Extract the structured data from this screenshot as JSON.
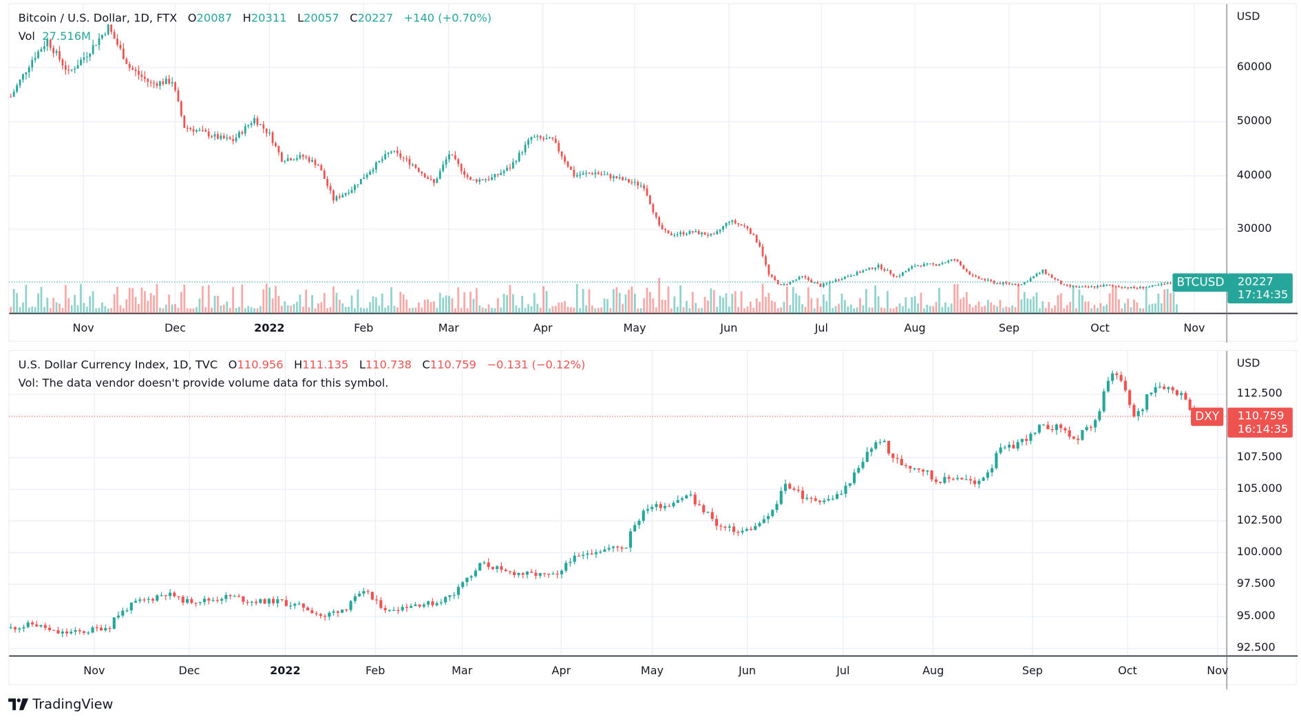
{
  "colors": {
    "up": "#26a69a",
    "down": "#ef5350",
    "grid": "#eaeef5",
    "axis": "#2a2e39"
  },
  "top_chart": {
    "legend": {
      "title": "Bitcoin / U.S. Dollar, 1D, FTX",
      "o_label": "O",
      "o": "20087",
      "h_label": "H",
      "h": "20311",
      "l_label": "L",
      "l": "20057",
      "c_label": "C",
      "c": "20227",
      "change": "+140 (+0.70%)",
      "vol_label": "Vol",
      "vol": "27.516M"
    },
    "currency": "USD",
    "symbol_tag": "BTCUSD",
    "last_price": "20227",
    "countdown": "17:14:35"
  },
  "bottom_chart": {
    "legend": {
      "title": "U.S. Dollar Currency Index, 1D, TVC",
      "o_label": "O",
      "o": "110.956",
      "h_label": "H",
      "h": "111.135",
      "l_label": "L",
      "l": "110.738",
      "c_label": "C",
      "c": "110.759",
      "change": "−0.131 (−0.12%)",
      "vol_note": "Vol: The data vendor doesn't provide volume data for this symbol."
    },
    "currency": "USD",
    "symbol_tag": "DXY",
    "last_price": "110.759",
    "countdown": "16:14:35"
  },
  "footer": {
    "brand": "TradingView"
  },
  "chart_data": [
    {
      "type": "candlestick",
      "title": "Bitcoin / U.S. Dollar, 1D, FTX",
      "ylabel": "USD",
      "ylim": [
        15000,
        71000
      ],
      "yticks": [
        "60000",
        "50000",
        "40000",
        "30000"
      ],
      "xticks": [
        "Nov",
        "Dec",
        "2022",
        "Feb",
        "Mar",
        "Apr",
        "May",
        "Jun",
        "Jul",
        "Aug",
        "Sep",
        "Oct",
        "Nov"
      ],
      "grid": true,
      "volume": true,
      "last": 20227,
      "close_approx": [
        [
          "2021-10-08",
          54600
        ],
        [
          "2021-10-15",
          61500
        ],
        [
          "2021-10-20",
          65000
        ],
        [
          "2021-10-27",
          59000
        ],
        [
          "2021-11-02",
          62500
        ],
        [
          "2021-11-09",
          67500
        ],
        [
          "2021-11-16",
          60000
        ],
        [
          "2021-11-23",
          57000
        ],
        [
          "2021-11-30",
          57500
        ],
        [
          "2021-12-04",
          49000
        ],
        [
          "2021-12-10",
          48000
        ],
        [
          "2021-12-15",
          47000
        ],
        [
          "2021-12-20",
          46500
        ],
        [
          "2021-12-27",
          50500
        ],
        [
          "2022-01-01",
          47600
        ],
        [
          "2022-01-05",
          43000
        ],
        [
          "2022-01-12",
          43500
        ],
        [
          "2022-01-17",
          42000
        ],
        [
          "2022-01-22",
          35500
        ],
        [
          "2022-01-28",
          37500
        ],
        [
          "2022-02-04",
          41500
        ],
        [
          "2022-02-10",
          44500
        ],
        [
          "2022-02-17",
          42000
        ],
        [
          "2022-02-24",
          38500
        ],
        [
          "2022-03-01",
          44000
        ],
        [
          "2022-03-08",
          39000
        ],
        [
          "2022-03-15",
          39500
        ],
        [
          "2022-03-21",
          41500
        ],
        [
          "2022-03-28",
          47000
        ],
        [
          "2022-04-04",
          46500
        ],
        [
          "2022-04-11",
          40000
        ],
        [
          "2022-04-18",
          40500
        ],
        [
          "2022-04-25",
          39500
        ],
        [
          "2022-05-04",
          38000
        ],
        [
          "2022-05-09",
          30500
        ],
        [
          "2022-05-12",
          29000
        ],
        [
          "2022-05-20",
          29500
        ],
        [
          "2022-05-27",
          28800
        ],
        [
          "2022-06-01",
          31600
        ],
        [
          "2022-06-07",
          30300
        ],
        [
          "2022-06-11",
          27000
        ],
        [
          "2022-06-14",
          21500
        ],
        [
          "2022-06-18",
          19500
        ],
        [
          "2022-06-25",
          21200
        ],
        [
          "2022-07-01",
          19500
        ],
        [
          "2022-07-08",
          21000
        ],
        [
          "2022-07-20",
          23200
        ],
        [
          "2022-07-26",
          21200
        ],
        [
          "2022-08-01",
          23300
        ],
        [
          "2022-08-08",
          23500
        ],
        [
          "2022-08-14",
          24400
        ],
        [
          "2022-08-20",
          21200
        ],
        [
          "2022-08-28",
          20000
        ],
        [
          "2022-09-05",
          19800
        ],
        [
          "2022-09-12",
          22300
        ],
        [
          "2022-09-19",
          19500
        ],
        [
          "2022-09-26",
          19200
        ],
        [
          "2022-10-03",
          19600
        ],
        [
          "2022-10-12",
          19100
        ],
        [
          "2022-10-18",
          19400
        ],
        [
          "2022-10-26",
          20227
        ]
      ]
    },
    {
      "type": "candlestick",
      "title": "U.S. Dollar Currency Index, 1D, TVC",
      "ylabel": "USD",
      "ylim": [
        92.5,
        114.5
      ],
      "yticks": [
        "112.500",
        "107.500",
        "105.000",
        "102.500",
        "100.000",
        "97.500",
        "95.000",
        "92.500"
      ],
      "xticks": [
        "Nov",
        "Dec",
        "2022",
        "Feb",
        "Mar",
        "Apr",
        "May",
        "Jun",
        "Jul",
        "Aug",
        "Sep",
        "Oct",
        "Nov"
      ],
      "grid": true,
      "volume": false,
      "last": 110.759,
      "close_approx": [
        [
          "2021-10-05",
          94.1
        ],
        [
          "2021-10-12",
          94.4
        ],
        [
          "2021-10-20",
          93.7
        ],
        [
          "2021-10-28",
          93.8
        ],
        [
          "2021-11-05",
          94.2
        ],
        [
          "2021-11-08",
          94.9
        ],
        [
          "2021-11-12",
          95.9
        ],
        [
          "2021-11-24",
          96.8
        ],
        [
          "2021-12-01",
          96.2
        ],
        [
          "2021-12-08",
          96.3
        ],
        [
          "2021-12-15",
          96.6
        ],
        [
          "2021-12-22",
          96.2
        ],
        [
          "2021-12-31",
          96.2
        ],
        [
          "2022-01-10",
          95.6
        ],
        [
          "2022-01-14",
          94.9
        ],
        [
          "2022-01-21",
          95.7
        ],
        [
          "2022-01-28",
          97.0
        ],
        [
          "2022-02-04",
          95.4
        ],
        [
          "2022-02-11",
          95.9
        ],
        [
          "2022-02-21",
          96.1
        ],
        [
          "2022-02-25",
          96.8
        ],
        [
          "2022-03-07",
          99.2
        ],
        [
          "2022-03-14",
          98.5
        ],
        [
          "2022-03-24",
          98.3
        ],
        [
          "2022-03-31",
          98.2
        ],
        [
          "2022-04-05",
          99.5
        ],
        [
          "2022-04-13",
          100.2
        ],
        [
          "2022-04-22",
          100.5
        ],
        [
          "2022-04-29",
          103.6
        ],
        [
          "2022-05-06",
          103.8
        ],
        [
          "2022-05-13",
          104.6
        ],
        [
          "2022-05-23",
          102.1
        ],
        [
          "2022-05-30",
          101.6
        ],
        [
          "2022-06-07",
          102.5
        ],
        [
          "2022-06-14",
          105.4
        ],
        [
          "2022-06-21",
          104.2
        ],
        [
          "2022-06-28",
          104.2
        ],
        [
          "2022-07-04",
          105.2
        ],
        [
          "2022-07-08",
          107.1
        ],
        [
          "2022-07-14",
          108.9
        ],
        [
          "2022-07-21",
          107.0
        ],
        [
          "2022-07-27",
          106.7
        ],
        [
          "2022-08-02",
          105.7
        ],
        [
          "2022-08-09",
          106.0
        ],
        [
          "2022-08-15",
          105.3
        ],
        [
          "2022-08-22",
          108.0
        ],
        [
          "2022-08-29",
          108.7
        ],
        [
          "2022-09-05",
          109.9
        ],
        [
          "2022-09-12",
          109.9
        ],
        [
          "2022-09-16",
          108.7
        ],
        [
          "2022-09-21",
          110.0
        ],
        [
          "2022-09-26",
          112.6
        ],
        [
          "2022-09-28",
          114.2
        ],
        [
          "2022-10-03",
          112.6
        ],
        [
          "2022-10-05",
          110.7
        ],
        [
          "2022-10-12",
          113.2
        ],
        [
          "2022-10-17",
          113.0
        ],
        [
          "2022-10-21",
          112.3
        ],
        [
          "2022-10-26",
          110.759
        ]
      ]
    }
  ]
}
